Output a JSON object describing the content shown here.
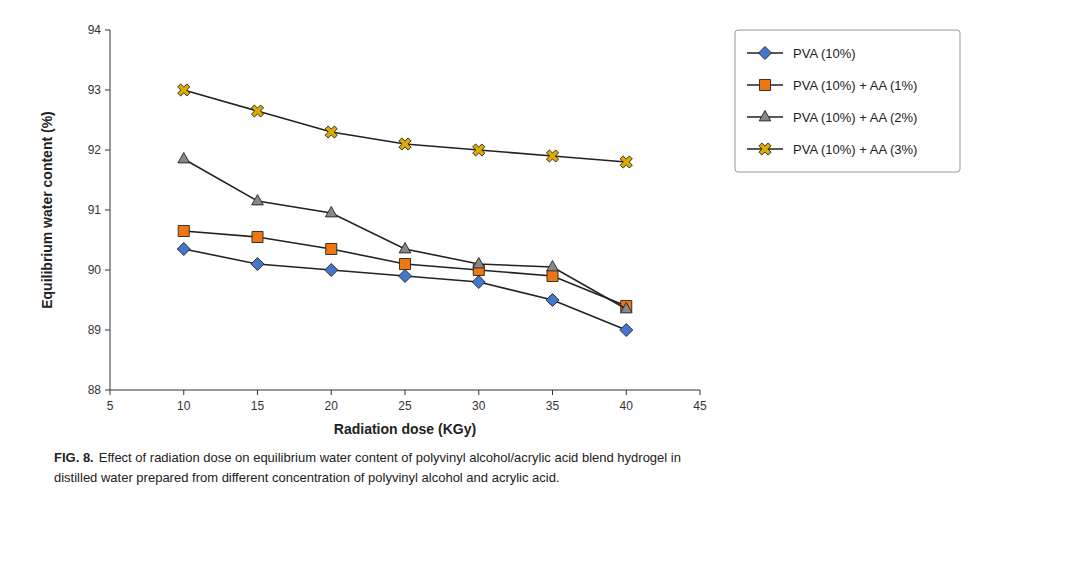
{
  "chart_data": {
    "type": "line",
    "xlabel": "Radiation dose (KGy)",
    "ylabel": "Equilibrium water content (%)",
    "caption_prefix": "FIG. 8.",
    "caption": [
      "Effect of radiation dose on equilibrium water content of polyvinyl alcohol/acrylic acid blend hydrogel in",
      "distilled water prepared from different concentration of polyvinyl alcohol and acrylic acid."
    ],
    "x": [
      10,
      15,
      20,
      25,
      30,
      35,
      40
    ],
    "series": [
      {
        "name": "PVA (10%)",
        "color": "#4477cc",
        "marker": "diamond",
        "line_style": "solid",
        "values": [
          90.35,
          90.1,
          90.0,
          89.9,
          89.8,
          89.5,
          89.0
        ]
      },
      {
        "name": "PVA (10%) + AA (1%)",
        "color": "#ee7711",
        "marker": "square",
        "line_style": "solid",
        "values": [
          90.65,
          90.55,
          90.35,
          90.1,
          90.0,
          89.9,
          89.4
        ]
      },
      {
        "name": "PVA (10%) + AA (2%)",
        "color": "#888888",
        "marker": "triangle",
        "line_style": "solid",
        "values": [
          91.85,
          91.15,
          90.95,
          90.35,
          90.1,
          90.05,
          89.35
        ]
      },
      {
        "name": "PVA (10%) + AA (3%)",
        "color": "#ddaa00",
        "marker": "x",
        "line_style": "solid",
        "values": [
          93.0,
          92.65,
          92.3,
          92.1,
          92.0,
          91.9,
          91.8
        ]
      }
    ],
    "xlim": [
      5,
      45
    ],
    "ylim": [
      88,
      94
    ],
    "xticks": [
      5,
      10,
      15,
      20,
      25,
      30,
      35,
      40,
      45
    ],
    "yticks": [
      88,
      89,
      90,
      91,
      92,
      93,
      94
    ],
    "grid": false,
    "legend": "right"
  }
}
